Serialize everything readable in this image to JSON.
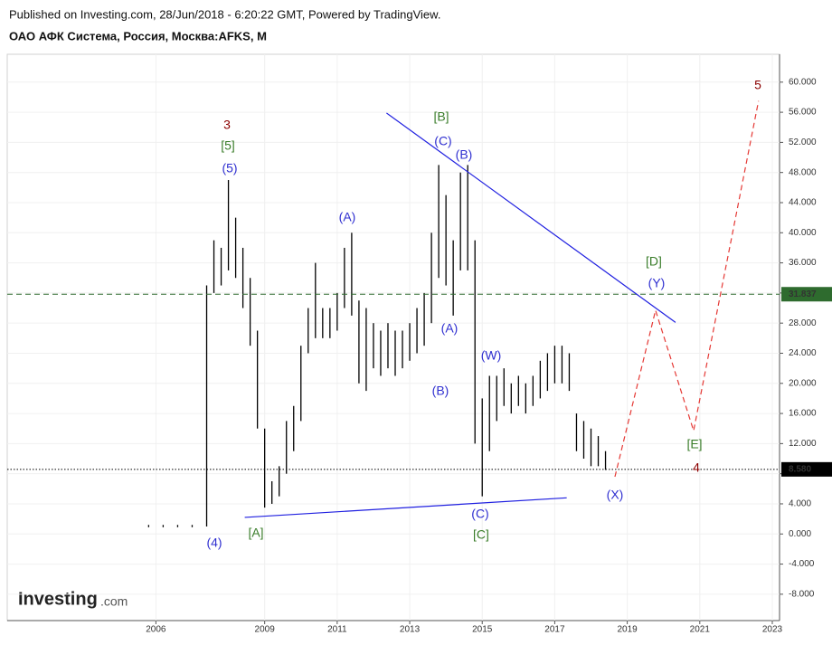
{
  "header": {
    "published": "Published on Investing.com, 28/Jun/2018 - 6:20:22 GMT, Powered by TradingView.",
    "symbol": "ОАО АФК Система, Россия, Москва:AFKS, M"
  },
  "logo": {
    "main": "Investing",
    "suffix": ".com"
  },
  "chart_data": {
    "type": "range-bar",
    "color": "#000000",
    "x": [
      2005.8,
      2006.2,
      2006.6,
      2007.0,
      2007.4,
      2007.6,
      2007.8,
      2008.0,
      2008.2,
      2008.4,
      2008.6,
      2008.8,
      2009.0,
      2009.2,
      2009.4,
      2009.6,
      2009.8,
      2010.0,
      2010.2,
      2010.4,
      2010.6,
      2010.8,
      2011.0,
      2011.2,
      2011.4,
      2011.6,
      2011.8,
      2012.0,
      2012.2,
      2012.4,
      2012.6,
      2012.8,
      2013.0,
      2013.2,
      2013.4,
      2013.6,
      2013.8,
      2014.0,
      2014.2,
      2014.4,
      2014.6,
      2014.8,
      2015.0,
      2015.2,
      2015.4,
      2015.6,
      2015.8,
      2016.0,
      2016.2,
      2016.4,
      2016.6,
      2016.8,
      2017.0,
      2017.2,
      2017.4,
      2017.6,
      2017.8,
      2018.0,
      2018.2,
      2018.4
    ],
    "high": [
      1.2,
      1.2,
      1.2,
      1.2,
      33,
      39,
      38,
      47,
      42,
      38,
      34,
      27,
      14,
      7,
      9,
      15,
      17,
      25,
      30,
      36,
      30,
      30,
      32,
      38,
      40,
      31,
      30,
      28,
      27,
      28,
      27,
      27,
      28,
      30,
      32,
      40,
      49,
      45,
      39,
      48,
      49,
      39,
      18,
      21,
      21,
      22,
      20,
      21,
      20,
      21,
      23,
      24,
      25,
      25,
      24,
      16,
      15,
      14,
      13,
      11
    ],
    "low": [
      0.9,
      0.9,
      0.9,
      0.9,
      1,
      32,
      33,
      35,
      34,
      30,
      25,
      14,
      3.5,
      4,
      5,
      8,
      11,
      15,
      24,
      26,
      26,
      26,
      27,
      30,
      29,
      20,
      19,
      22,
      21,
      22,
      21,
      22,
      23,
      24,
      25,
      28,
      34,
      33,
      29,
      35,
      35,
      12,
      5,
      11,
      15,
      17,
      16,
      17,
      16,
      17,
      18,
      19,
      20,
      20,
      19,
      11,
      10,
      9,
      9,
      8.5
    ],
    "xlim": [
      2001.9,
      2023.2
    ],
    "ylim": [
      -11.5,
      63.7
    ],
    "xticks": [
      2006,
      2009,
      2011,
      2013,
      2015,
      2017,
      2019,
      2021,
      2023
    ],
    "yticks": [
      {
        "value": -8,
        "label": "-8.000"
      },
      {
        "value": -4,
        "label": "-4.000"
      },
      {
        "value": 0,
        "label": "0.000"
      },
      {
        "value": 4,
        "label": "4.000"
      },
      {
        "value": 8,
        "label": "8.000"
      },
      {
        "value": 12,
        "label": "12.000"
      },
      {
        "value": 16,
        "label": "16.000"
      },
      {
        "value": 20,
        "label": "20.000"
      },
      {
        "value": 24,
        "label": "24.000"
      },
      {
        "value": 28,
        "label": "28.000"
      },
      {
        "value": 32,
        "label": "32.000"
      },
      {
        "value": 36,
        "label": "36.000"
      },
      {
        "value": 40,
        "label": "40.000"
      },
      {
        "value": 44,
        "label": "44.000"
      },
      {
        "value": 48,
        "label": "48.000"
      },
      {
        "value": 52,
        "label": "52.000"
      },
      {
        "value": 56,
        "label": "56.000"
      },
      {
        "value": 60,
        "label": "60.000"
      }
    ],
    "grid": true,
    "reference_lines": [
      {
        "value": 31.837,
        "label": "31.837",
        "color": "#2e6b2e",
        "style": "dashed"
      },
      {
        "value": 8.58,
        "label": "8.580",
        "color": "#000000",
        "style": "dotted"
      }
    ],
    "trendlines": [
      {
        "color": "#1f1fe0",
        "style": "solid",
        "x": [
          2012.36,
          2020.33
        ],
        "y": [
          55.9,
          28.1
        ]
      },
      {
        "color": "#1f1fe0",
        "style": "solid",
        "x": [
          2008.45,
          2017.33
        ],
        "y": [
          2.2,
          4.8
        ]
      },
      {
        "color": "#e53935",
        "style": "dashed",
        "x": [
          2018.66,
          2019.78,
          2020.83,
          2022.62
        ],
        "y": [
          7.6,
          29.7,
          13.7,
          57.5
        ]
      }
    ],
    "annotations": [
      {
        "text": "3",
        "color": "#8b0000"
      },
      {
        "text": "[5]",
        "color": "#3a7d2a"
      },
      {
        "text": "(5)",
        "color": "#2f2fd0"
      },
      {
        "text": "(4)",
        "color": "#2f2fd0"
      },
      {
        "text": "[A]",
        "color": "#3a7d2a"
      },
      {
        "text": "(A)",
        "color": "#2f2fd0"
      },
      {
        "text": "[B]",
        "color": "#3a7d2a"
      },
      {
        "text": "(C)",
        "color": "#2f2fd0"
      },
      {
        "text": "(B)",
        "color": "#2f2fd0"
      },
      {
        "text": "(A)",
        "color": "#2f2fd0"
      },
      {
        "text": "(B)",
        "color": "#2f2fd0"
      },
      {
        "text": "(W)",
        "color": "#2f2fd0"
      },
      {
        "text": "(C)",
        "color": "#2f2fd0"
      },
      {
        "text": "[C]",
        "color": "#3a7d2a"
      },
      {
        "text": "[D]",
        "color": "#3a7d2a"
      },
      {
        "text": "(Y)",
        "color": "#2f2fd0"
      },
      {
        "text": "[E]",
        "color": "#3a7d2a"
      },
      {
        "text": "4",
        "color": "#8b0000"
      },
      {
        "text": "(X)",
        "color": "#2f2fd0"
      },
      {
        "text": "5",
        "color": "#8b0000"
      }
    ]
  }
}
